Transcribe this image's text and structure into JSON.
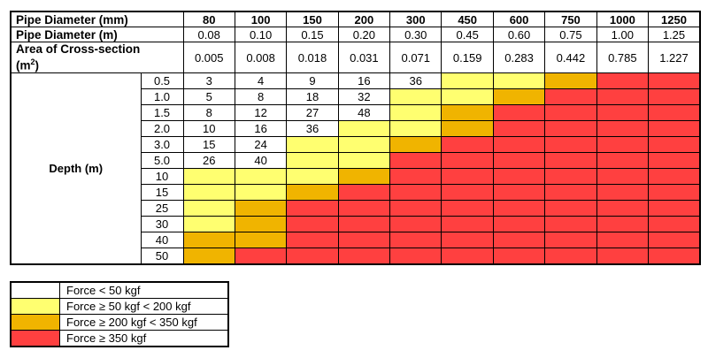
{
  "header": {
    "diameter_mm_label": "Pipe Diameter (mm)",
    "diameter_m_label": "Pipe Diameter (m)",
    "area_label": "Area of Cross-section",
    "area_unit": "(m",
    "area_sup": "2",
    "area_close": ")",
    "diameters_mm": [
      "80",
      "100",
      "150",
      "200",
      "300",
      "450",
      "600",
      "750",
      "1000",
      "1250"
    ],
    "diameters_m": [
      "0.08",
      "0.10",
      "0.15",
      "0.20",
      "0.30",
      "0.45",
      "0.60",
      "0.75",
      "1.00",
      "1.25"
    ],
    "areas": [
      "0.005",
      "0.008",
      "0.018",
      "0.031",
      "0.071",
      "0.159",
      "0.283",
      "0.442",
      "0.785",
      "1.227"
    ]
  },
  "depth_label": "Depth (m)",
  "colors": {
    "W": "#ffffff",
    "Y": "#ffff70",
    "O": "#f0b400",
    "R": "#ff4040"
  },
  "rows": [
    {
      "depth": "0.5",
      "cells": [
        "3",
        "4",
        "9",
        "16",
        "36",
        "Y",
        "Y",
        "O",
        "R",
        "R"
      ]
    },
    {
      "depth": "1.0",
      "cells": [
        "5",
        "8",
        "18",
        "32",
        "Y",
        "Y",
        "O",
        "R",
        "R",
        "R"
      ]
    },
    {
      "depth": "1.5",
      "cells": [
        "8",
        "12",
        "27",
        "48",
        "Y",
        "O",
        "R",
        "R",
        "R",
        "R"
      ]
    },
    {
      "depth": "2.0",
      "cells": [
        "10",
        "16",
        "36",
        "Y",
        "Y",
        "O",
        "R",
        "R",
        "R",
        "R"
      ]
    },
    {
      "depth": "3.0",
      "cells": [
        "15",
        "24",
        "Y",
        "Y",
        "O",
        "R",
        "R",
        "R",
        "R",
        "R"
      ]
    },
    {
      "depth": "5.0",
      "cells": [
        "26",
        "40",
        "Y",
        "Y",
        "R",
        "R",
        "R",
        "R",
        "R",
        "R"
      ]
    },
    {
      "depth": "10",
      "cells": [
        "Y",
        "Y",
        "Y",
        "O",
        "R",
        "R",
        "R",
        "R",
        "R",
        "R"
      ]
    },
    {
      "depth": "15",
      "cells": [
        "Y",
        "Y",
        "O",
        "R",
        "R",
        "R",
        "R",
        "R",
        "R",
        "R"
      ]
    },
    {
      "depth": "25",
      "cells": [
        "Y",
        "O",
        "R",
        "R",
        "R",
        "R",
        "R",
        "R",
        "R",
        "R"
      ]
    },
    {
      "depth": "30",
      "cells": [
        "Y",
        "O",
        "R",
        "R",
        "R",
        "R",
        "R",
        "R",
        "R",
        "R"
      ]
    },
    {
      "depth": "40",
      "cells": [
        "O",
        "O",
        "R",
        "R",
        "R",
        "R",
        "R",
        "R",
        "R",
        "R"
      ]
    },
    {
      "depth": "50",
      "cells": [
        "O",
        "R",
        "R",
        "R",
        "R",
        "R",
        "R",
        "R",
        "R",
        "R"
      ]
    }
  ],
  "legend": [
    {
      "key": "W",
      "label": "Force < 50 kgf"
    },
    {
      "key": "Y",
      "label": "Force ≥ 50 kgf < 200 kgf"
    },
    {
      "key": "O",
      "label": "Force ≥ 200 kgf < 350 kgf"
    },
    {
      "key": "R",
      "label": "Force ≥ 350 kgf"
    }
  ]
}
